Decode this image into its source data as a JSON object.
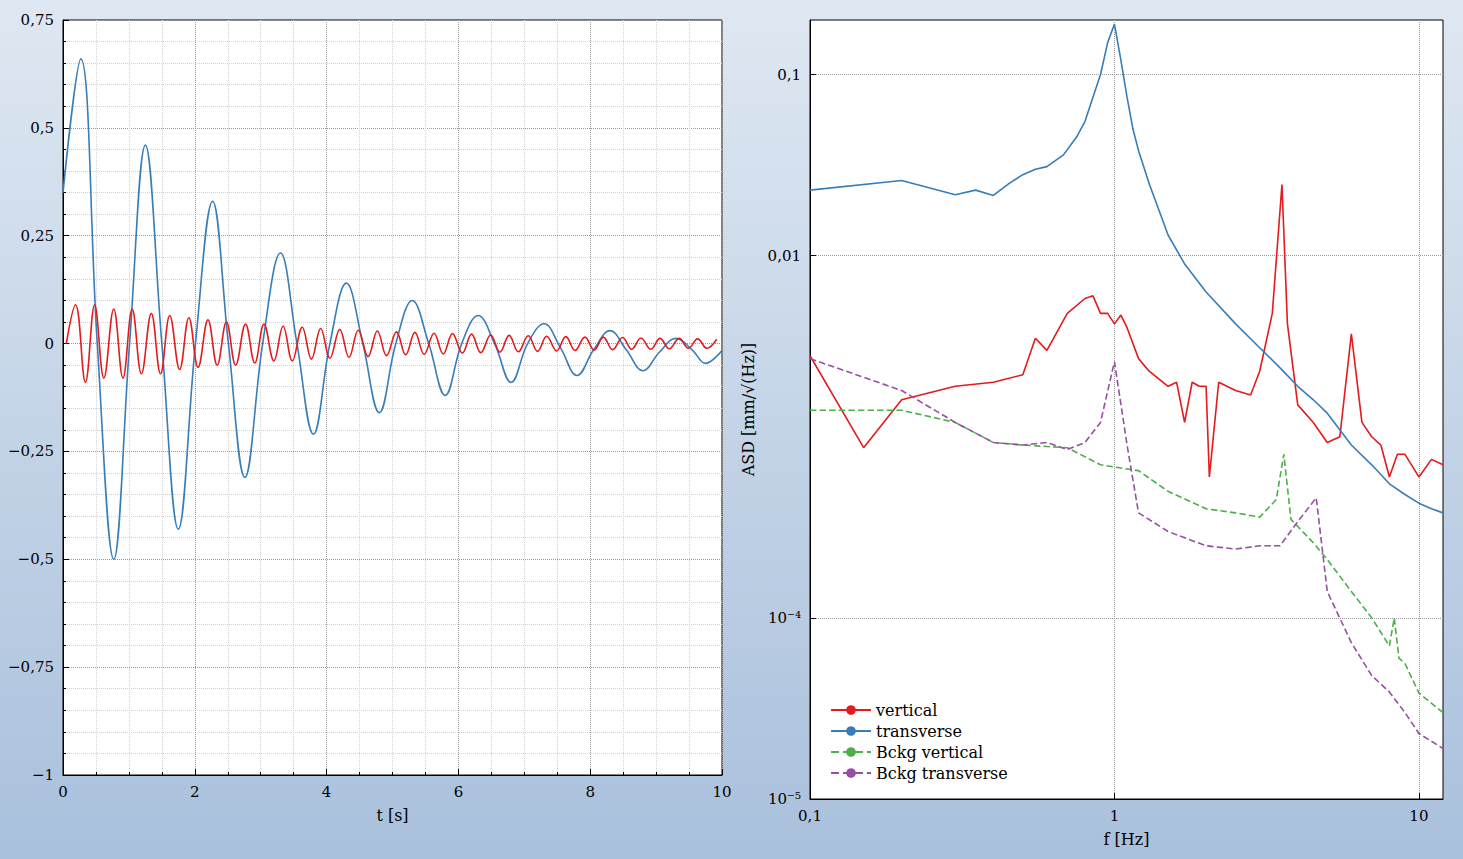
{
  "chart_data": [
    {
      "type": "line",
      "xlabel": "t [s]",
      "xlim": [
        0,
        10
      ],
      "ylim": [
        -1,
        0.75
      ],
      "xticks": [
        0,
        2,
        4,
        6,
        8,
        10
      ],
      "yticks": [
        {
          "value": -1,
          "label": "−1"
        },
        {
          "value": -0.75,
          "label": "−0,75"
        },
        {
          "value": -0.5,
          "label": "−0,5"
        },
        {
          "value": -0.25,
          "label": "−0,25"
        },
        0,
        {
          "value": 0.25,
          "label": "0,25"
        },
        {
          "value": 0.5,
          "label": "0,5"
        },
        {
          "value": 0.75,
          "label": "0,75"
        }
      ],
      "grid": true,
      "series": [
        {
          "color": "#377eb8",
          "x": [
            0,
            0.27,
            0.52,
            0.77,
            1.01,
            1.25,
            1.5,
            1.75,
            2.01,
            2.27,
            2.51,
            2.76,
            3.03,
            3.3,
            3.55,
            3.8,
            4.05,
            4.3,
            4.55,
            4.8,
            5.05,
            5.3,
            5.55,
            5.8,
            6.05,
            6.3,
            6.55,
            6.8,
            7.05,
            7.3,
            7.55,
            7.8,
            8.05,
            8.3,
            8.55,
            8.8,
            9.05,
            9.3,
            9.55,
            9.75,
            10
          ],
          "values": [
            0.35,
            0.66,
            0,
            -0.5,
            0,
            0.46,
            0,
            -0.43,
            0,
            0.33,
            0,
            -0.31,
            0,
            0.21,
            0,
            -0.21,
            0,
            0.14,
            0,
            -0.16,
            0,
            0.1,
            0,
            -0.12,
            0,
            0.065,
            0,
            -0.09,
            0,
            0.046,
            -0.01,
            -0.074,
            -0.015,
            0.03,
            -0.015,
            -0.063,
            -0.02,
            0.012,
            -0.015,
            -0.046,
            -0.016
          ]
        },
        {
          "color": "#e41a1c",
          "x": [
            0.05,
            0.19,
            0.34,
            0.48,
            0.62,
            0.77,
            0.91,
            1.05,
            1.19,
            1.34,
            1.48,
            1.62,
            1.77,
            1.91,
            2.05,
            2.2,
            2.34,
            2.48,
            2.62,
            2.77,
            2.91,
            3.05,
            3.2,
            3.34,
            3.48,
            3.63,
            3.77,
            3.91,
            4.05,
            4.2,
            4.34,
            4.48,
            4.63,
            4.77,
            4.91,
            5.06,
            5.2,
            5.34,
            5.48,
            5.63,
            5.77,
            5.91,
            6.06,
            6.2,
            6.34,
            6.49,
            6.63,
            6.77,
            6.91,
            7.06,
            7.2,
            7.34,
            7.49,
            7.63,
            7.77,
            7.92,
            8.06,
            8.2,
            8.34,
            8.49,
            8.63,
            8.77,
            8.92,
            9.06,
            9.2,
            9.35,
            9.49,
            9.63,
            9.77,
            9.92
          ],
          "values": [
            0,
            0.09,
            -0.09,
            0.09,
            -0.08,
            0.08,
            -0.08,
            0.08,
            -0.07,
            0.07,
            -0.07,
            0.065,
            -0.06,
            0.06,
            -0.055,
            0.055,
            -0.05,
            0.05,
            -0.05,
            0.045,
            -0.045,
            0.045,
            -0.04,
            0.04,
            -0.04,
            0.038,
            -0.036,
            0.035,
            -0.034,
            0.033,
            -0.032,
            0.031,
            -0.03,
            0.029,
            -0.028,
            0.027,
            -0.026,
            0.026,
            -0.025,
            0.024,
            -0.024,
            0.023,
            -0.022,
            0.022,
            -0.021,
            0.02,
            -0.02,
            0.019,
            -0.019,
            0.018,
            -0.018,
            0.017,
            -0.017,
            0.016,
            -0.016,
            0.015,
            -0.015,
            0.015,
            -0.014,
            0.014,
            -0.013,
            0.013,
            -0.013,
            0.012,
            -0.012,
            0.012,
            -0.011,
            0.011,
            -0.011,
            0.01
          ]
        }
      ]
    },
    {
      "type": "line",
      "xlabel": "f [Hz]",
      "ylabel": "ASD [mm/√(Hz)]",
      "log": true,
      "xlim": [
        0.1,
        12
      ],
      "ylim": [
        1e-05,
        0.2
      ],
      "xticks": [
        {
          "value": 0.1,
          "label": "0,1"
        },
        1,
        10
      ],
      "yticks": [
        {
          "value": 1e-05,
          "label": "10⁻⁵"
        },
        {
          "value": 0.0001,
          "label": "10⁻⁴"
        },
        {
          "value": 0.01,
          "label": "0,01"
        },
        {
          "value": 0.1,
          "label": "0,1"
        }
      ],
      "grid": true,
      "legend": "lower left",
      "series": [
        {
          "name": "vertical",
          "color": "#e41a1c",
          "line_style": "solid",
          "x": [
            0.1,
            0.15,
            0.2,
            0.3,
            0.4,
            0.5,
            0.55,
            0.6,
            0.7,
            0.8,
            0.85,
            0.9,
            0.95,
            1.0,
            1.05,
            1.1,
            1.2,
            1.3,
            1.5,
            1.6,
            1.7,
            1.8,
            1.9,
            2.0,
            2.05,
            2.2,
            2.5,
            2.8,
            3.0,
            3.3,
            3.55,
            3.7,
            4.0,
            4.5,
            5.0,
            5.5,
            6.0,
            6.5,
            7.0,
            7.5,
            8.0,
            8.5,
            9.0,
            10,
            11,
            12
          ],
          "values": [
            0.0028,
            0.00087,
            0.0016,
            0.0019,
            0.002,
            0.0022,
            0.0035,
            0.003,
            0.0048,
            0.0058,
            0.006,
            0.0048,
            0.0048,
            0.0042,
            0.0047,
            0.004,
            0.0027,
            0.0023,
            0.0019,
            0.002,
            0.0012,
            0.002,
            0.0019,
            0.0019,
            0.0006,
            0.002,
            0.0018,
            0.0017,
            0.0023,
            0.0048,
            0.0247,
            0.0042,
            0.0015,
            0.0012,
            0.00093,
            0.001,
            0.0037,
            0.0012,
            0.001,
            0.0009,
            0.0006,
            0.0008,
            0.0008,
            0.0006,
            0.00075,
            0.0007
          ]
        },
        {
          "name": "transverse",
          "color": "#377eb8",
          "line_style": "solid",
          "x": [
            0.1,
            0.2,
            0.3,
            0.35,
            0.4,
            0.45,
            0.5,
            0.55,
            0.6,
            0.68,
            0.75,
            0.8,
            0.85,
            0.9,
            0.95,
            1.0,
            1.05,
            1.1,
            1.15,
            1.2,
            1.3,
            1.5,
            1.7,
            2,
            2.5,
            3,
            3.5,
            4,
            4.5,
            5,
            6,
            7,
            8,
            9,
            10,
            11,
            12
          ],
          "values": [
            0.023,
            0.026,
            0.0217,
            0.023,
            0.0215,
            0.025,
            0.028,
            0.03,
            0.031,
            0.036,
            0.045,
            0.055,
            0.075,
            0.1,
            0.15,
            0.19,
            0.12,
            0.075,
            0.05,
            0.038,
            0.025,
            0.013,
            0.009,
            0.0063,
            0.0042,
            0.0031,
            0.0024,
            0.0019,
            0.0016,
            0.00135,
            0.0009,
            0.0007,
            0.00055,
            0.00048,
            0.00043,
            0.0004,
            0.00038
          ]
        },
        {
          "name": "Bckg vertical",
          "color": "#4daf4a",
          "line_style": "dashed",
          "x": [
            0.1,
            0.2,
            0.3,
            0.4,
            0.5,
            0.7,
            0.9,
            1.0,
            1.2,
            1.5,
            2.0,
            2.5,
            3.0,
            3.4,
            3.6,
            3.8,
            4.5,
            5,
            6,
            7,
            8,
            8.3,
            8.6,
            9,
            10,
            12
          ],
          "values": [
            0.0014,
            0.0014,
            0.0012,
            0.00093,
            0.0009,
            0.00087,
            0.0007,
            0.00068,
            0.00065,
            0.0005,
            0.0004,
            0.00038,
            0.00036,
            0.00045,
            0.0008,
            0.00035,
            0.00026,
            0.00021,
            0.00014,
            0.0001,
            7e-05,
            0.0001,
            6e-05,
            5.6e-05,
            3.85e-05,
            3e-05
          ]
        },
        {
          "name": "Bckg transverse",
          "color": "#984ea3",
          "line_style": "dashed",
          "x": [
            0.1,
            0.2,
            0.3,
            0.4,
            0.5,
            0.6,
            0.7,
            0.8,
            0.9,
            1.0,
            1.1,
            1.2,
            1.5,
            2,
            2.5,
            3,
            3.5,
            4,
            4.6,
            5,
            6,
            7,
            8,
            9,
            10,
            12
          ],
          "values": [
            0.0027,
            0.0018,
            0.0012,
            0.00093,
            0.0009,
            0.00093,
            0.00085,
            0.00093,
            0.0012,
            0.0026,
            0.0009,
            0.00038,
            0.0003,
            0.00025,
            0.00024,
            0.00025,
            0.00025,
            0.00034,
            0.00046,
            0.00014,
            7.3e-05,
            4.8e-05,
            3.9e-05,
            3e-05,
            2.3e-05,
            1.9e-05
          ]
        }
      ]
    }
  ]
}
